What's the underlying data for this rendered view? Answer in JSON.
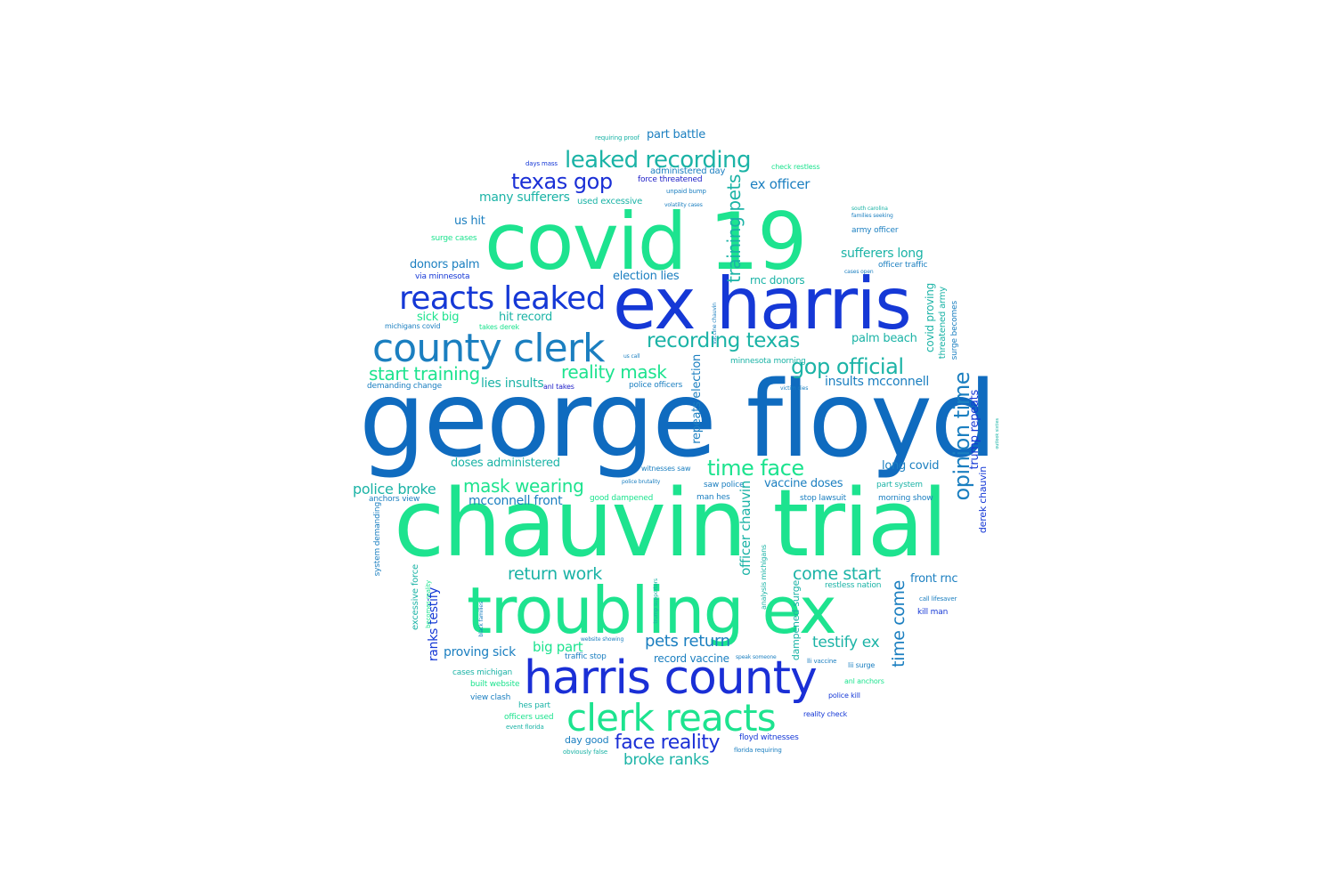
{
  "palette": {
    "green": "#1de38f",
    "teal": "#1bb3a6",
    "steel": "#1b7fc0",
    "blue": "#0f6bbf",
    "royal": "#1538d6",
    "indigo": "#2222c8"
  },
  "words": {
    "george_floyd": "george floyd",
    "chauvin_trial": "chauvin trial",
    "covid_19": "covid 19",
    "ex_harris": "ex harris",
    "troubling_ex": "troubling ex",
    "harris_county": "harris county",
    "county_clerk": "county clerk",
    "clerk_reacts": "clerk reacts",
    "reacts_leaked": "reacts leaked",
    "leaked_recording": "leaked recording",
    "recording_texas": "recording texas",
    "texas_gop": "texas gop",
    "gop_official": "gop official",
    "time_face": "time face",
    "opinion_time": "opinion time",
    "face_reality": "face reality",
    "reality_mask": "reality mask",
    "mask_wearing": "mask wearing",
    "start_training": "start training",
    "training_pets": "training pets",
    "pets_return": "pets return",
    "return_work": "return work",
    "come_start": "come start",
    "time_come": "time come",
    "testify_ex": "testify ex",
    "ranks_testify": "ranks testify",
    "broke_ranks": "broke ranks",
    "police_broke": "police broke",
    "big_part": "big part",
    "part_battle": "part battle",
    "ex_officer": "ex officer",
    "officer_chauvin": "officer chauvin",
    "repeats_election": "repeats election",
    "trump_repeats": "trump repeats",
    "election_lies": "election lies",
    "lies_insults": "lies insults",
    "insults_mcconnell": "insults mcconnell",
    "mcconnell_front": "mcconnell front",
    "front_rnc": "front rnc",
    "rnc_donors": "rnc donors",
    "donors_palm": "donors palm",
    "palm_beach": "palm beach",
    "many_sufferers": "many sufferers",
    "sufferers_long": "sufferers long",
    "long_covid": "long covid",
    "covid_proving": "covid proving",
    "proving_sick": "proving sick",
    "sick_big": "sick big",
    "doses_administered": "doses administered",
    "vaccine_doses": "vaccine doses",
    "record_vaccine": "record vaccine",
    "hit_record": "hit record",
    "us_hit": "us hit",
    "derek_chauvin": "derek chauvin",
    "via_minnesota": "via minnesota",
    "surge_cases": "surge cases",
    "dampened_surge": "dampened surge",
    "good_dampened": "good dampened",
    "day_good": "day good",
    "police_officers": "police officers",
    "officers_used": "officers used",
    "used_excessive": "used excessive",
    "excessive_force": "excessive force",
    "force_threatened": "force threatened",
    "threatened_army": "threatened army",
    "army_officer": "army officer",
    "officer_traffic": "officer traffic",
    "traffic_stop": "traffic stop",
    "stop_lawsuit": "stop lawsuit",
    "system_demanding": "system demanding",
    "demanding_change": "demanding change",
    "part_system": "part system",
    "morning_show": "morning show",
    "anchors_view": "anchors view",
    "view_clash": "view clash",
    "cases_michigan": "cases michigan",
    "michigans_covid": "michigans covid",
    "built_website": "built website",
    "saw_police": "saw police",
    "police_kill": "police kill",
    "kill_man": "kill man",
    "man_hes": "man hes",
    "hes_part": "hes part",
    "floyd_witnesses": "floyd witnesses",
    "witnesses_saw": "witnesses saw",
    "reality_check": "reality check",
    "restless_nation": "restless nation",
    "check_restless": "check restless",
    "administered_day": "administered day",
    "minnesota_morning": "minnesota morning",
    "surge_becomes": "surge becomes",
    "lii_surge": "lii surge",
    "lli_vaccine": "lli vaccine",
    "takes_derek": "takes derek",
    "anl_takes": "anl takes",
    "vaccine_chauvin": "vaccine chauvin",
    "palm_beach_minor": "palm beach",
    "days_mass": "days mass",
    "requiring_proof": "requiring proof",
    "unpaid_bump": "unpaid bump",
    "volatility_cases": "volatility cases",
    "south_carolina": "south carolina",
    "families_seeking": "families seeking",
    "cases_open": "cases open",
    "obviously_false": "obviously false",
    "florida_requiring": "florida requiring",
    "event_florida": "event florida",
    "anl_anchors": "anl anchors",
    "black_families": "black families",
    "analysis_michigans": "analysis michigans",
    "becomes_reality": "becomes reality",
    "call_lifesaver": "call lifesaver",
    "website_showing": "website showing",
    "speak_someone": "speak someone",
    "us_call": "us call",
    "victim_dies": "victim dies",
    "police_brutality": "police brutality",
    "trump_supporters": "trump supporters",
    "outlook_sixties": "outlook sixties"
  }
}
